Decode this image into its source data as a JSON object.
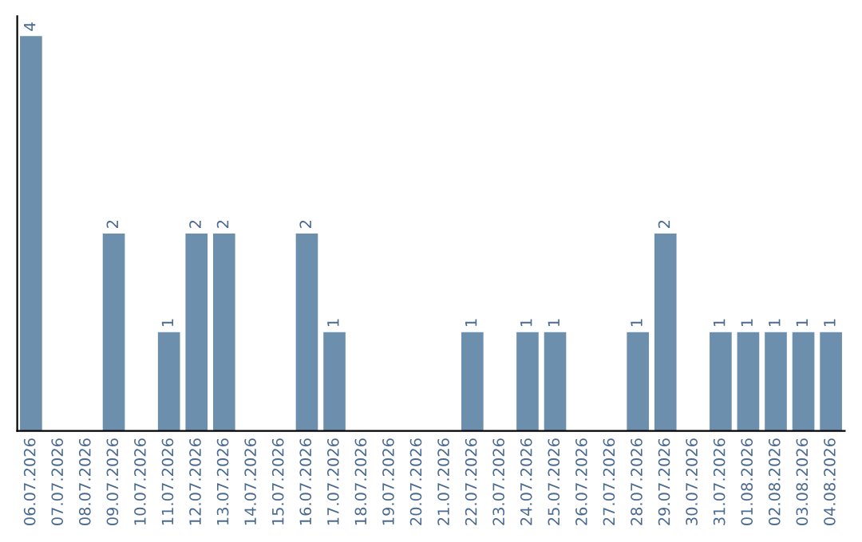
{
  "chart_data": {
    "type": "bar",
    "categories": [
      "06.07.2026",
      "07.07.2026",
      "08.07.2026",
      "09.07.2026",
      "10.07.2026",
      "11.07.2026",
      "12.07.2026",
      "13.07.2026",
      "14.07.2026",
      "15.07.2026",
      "16.07.2026",
      "17.07.2026",
      "18.07.2026",
      "19.07.2026",
      "20.07.2026",
      "21.07.2026",
      "22.07.2026",
      "23.07.2026",
      "24.07.2026",
      "25.07.2026",
      "26.07.2026",
      "27.07.2026",
      "28.07.2026",
      "29.07.2026",
      "30.07.2026",
      "31.07.2026",
      "01.08.2026",
      "02.08.2026",
      "03.08.2026",
      "04.08.2026"
    ],
    "values": [
      4,
      0,
      0,
      2,
      0,
      1,
      2,
      2,
      0,
      0,
      2,
      1,
      0,
      0,
      0,
      0,
      1,
      0,
      1,
      1,
      0,
      0,
      1,
      2,
      0,
      1,
      1,
      1,
      1,
      1
    ],
    "value_labels": [
      "4",
      null,
      null,
      "2",
      null,
      "1",
      "2",
      "2",
      null,
      null,
      "2",
      "1",
      null,
      null,
      null,
      null,
      "1",
      null,
      "1",
      "1",
      null,
      null,
      "1",
      "2",
      null,
      "1",
      "1",
      "1",
      "1",
      "1"
    ],
    "color": "#6d8fae",
    "ylim": [
      0,
      4.2
    ],
    "tick_labels": "x",
    "grid": false,
    "legend": false
  }
}
